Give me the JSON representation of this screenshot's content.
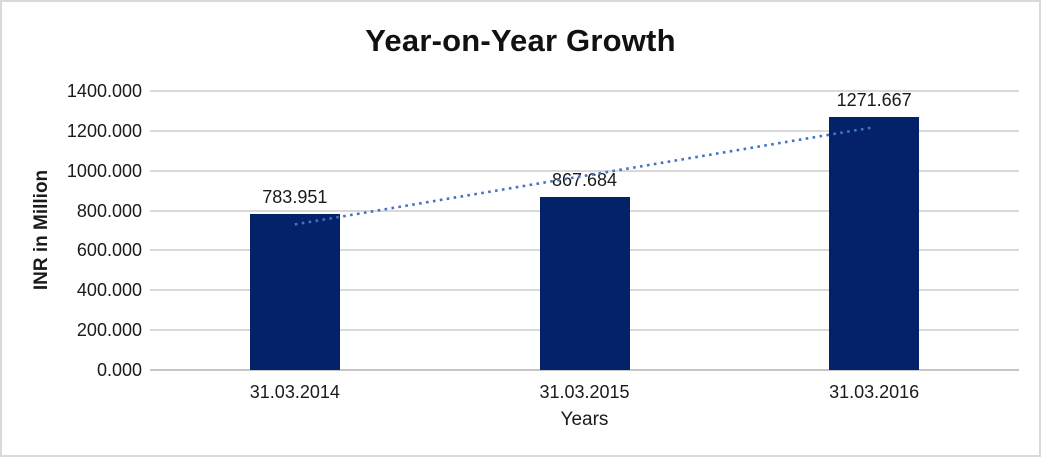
{
  "window": {
    "background": "#ffffff",
    "border_color": "#d9d9d9"
  },
  "chart_data": {
    "type": "bar",
    "title": "Year-on-Year Growth",
    "categories": [
      "31.03.2014",
      "31.03.2015",
      "31.03.2016"
    ],
    "values": [
      783.951,
      867.684,
      1271.667
    ],
    "data_labels": [
      "783.951",
      "867.684",
      "1271.667"
    ],
    "xlabel": "Years",
    "ylabel": "INR in Million",
    "ylim": [
      0,
      1400
    ],
    "ytick_step": 200,
    "ytick_labels": [
      "0.000",
      "200.000",
      "400.000",
      "600.000",
      "800.000",
      "1000.000",
      "1200.000",
      "1400.000"
    ],
    "grid": true,
    "legend": "none",
    "trendline": {
      "style": "dotted",
      "color": "#4472c4",
      "start_value": 730.6,
      "end_value": 1218.3
    },
    "colors": {
      "bar": "#032269",
      "trendline": "#4472c4",
      "gridline": "#d9d9d9",
      "axis_line": "#c6c6c6",
      "text": "#1a1a1a"
    }
  }
}
